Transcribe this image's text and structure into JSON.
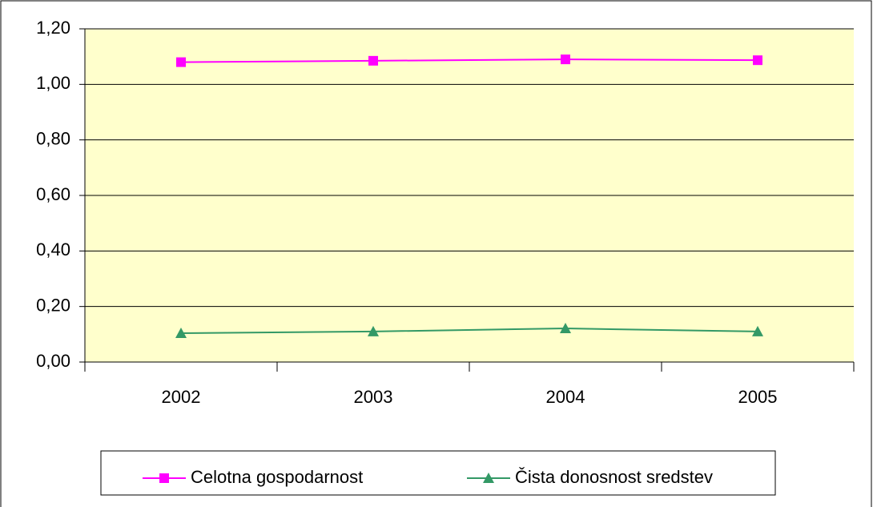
{
  "chart_data": {
    "type": "line",
    "categories": [
      "2002",
      "2003",
      "2004",
      "2005"
    ],
    "series": [
      {
        "name": "Celotna gospodarnost",
        "color": "#ff00ff",
        "marker": "square",
        "values": [
          1.08,
          1.085,
          1.09,
          1.087
        ]
      },
      {
        "name": "Čista donosnost sredstev",
        "color": "#339966",
        "marker": "triangle",
        "values": [
          0.104,
          0.11,
          0.121,
          0.11
        ]
      }
    ],
    "ylim": [
      0,
      1.2
    ],
    "yticks": [
      {
        "value": 0,
        "label": "0,00"
      },
      {
        "value": 0.2,
        "label": "0,20"
      },
      {
        "value": 0.4,
        "label": "0,40"
      },
      {
        "value": 0.6,
        "label": "0,60"
      },
      {
        "value": 0.8,
        "label": "0,80"
      },
      {
        "value": 1.0,
        "label": "1,00"
      },
      {
        "value": 1.2,
        "label": "1,20"
      }
    ],
    "grid": true,
    "plot_background": "#ffffcc",
    "legend": "bottom"
  }
}
